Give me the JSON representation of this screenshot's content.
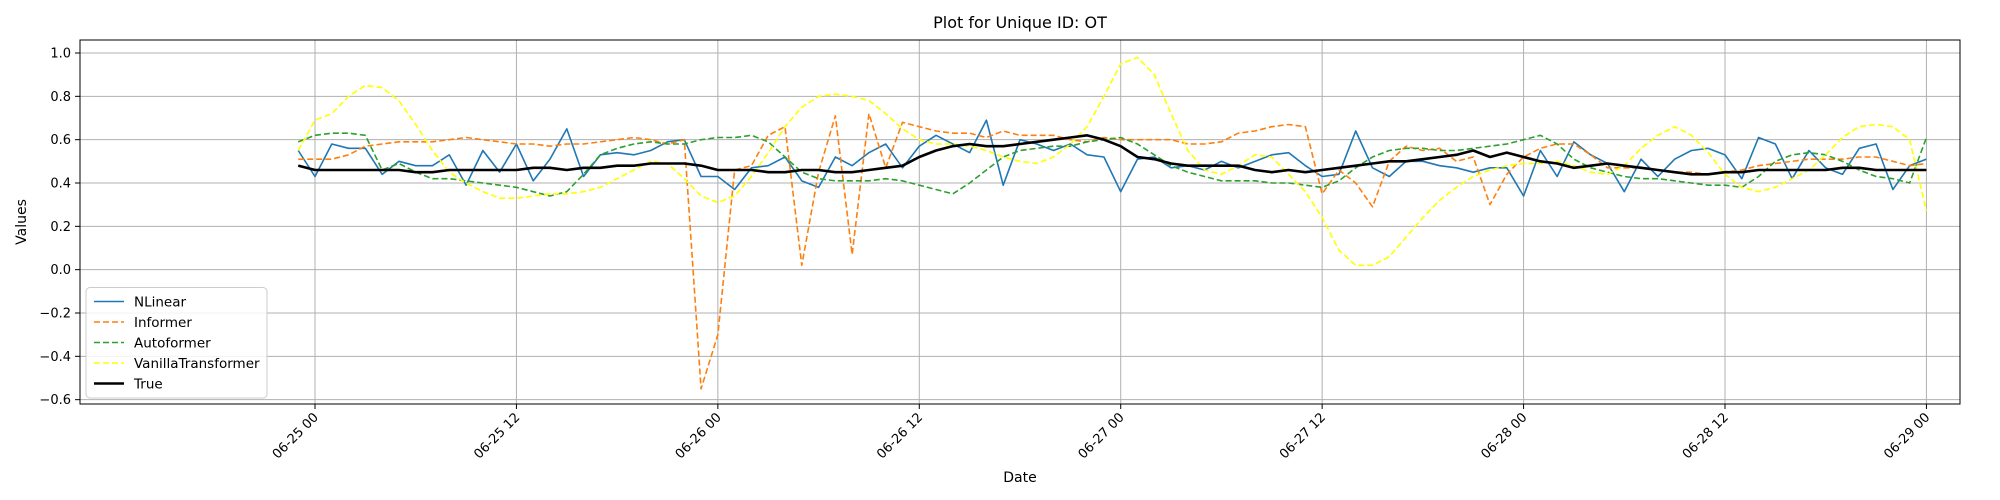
{
  "chart_data": {
    "type": "line",
    "title": "Plot for Unique ID: OT",
    "xlabel": "Date",
    "ylabel": "Values",
    "x_range": [
      "2025-06-24T10:00",
      "2025-06-29T02:00"
    ],
    "ylim": [
      -0.62,
      1.06
    ],
    "yticks": [
      -0.6,
      -0.4,
      -0.2,
      0.0,
      0.2,
      0.4,
      0.6,
      0.8,
      1.0
    ],
    "xticks": [
      {
        "t": "2025-06-25T00:00",
        "label": "06-25 00"
      },
      {
        "t": "2025-06-25T12:00",
        "label": "06-25 12"
      },
      {
        "t": "2025-06-26T00:00",
        "label": "06-26 00"
      },
      {
        "t": "2025-06-26T12:00",
        "label": "06-26 12"
      },
      {
        "t": "2025-06-27T00:00",
        "label": "06-27 00"
      },
      {
        "t": "2025-06-27T12:00",
        "label": "06-27 12"
      },
      {
        "t": "2025-06-28T00:00",
        "label": "06-28 00"
      },
      {
        "t": "2025-06-28T12:00",
        "label": "06-28 12"
      },
      {
        "t": "2025-06-29T00:00",
        "label": "06-29 00"
      }
    ],
    "grid": true,
    "legend_position": "lower-left",
    "x_start": "2025-06-24T23:00",
    "x_step_hours": 1,
    "series": [
      {
        "name": "NLinear",
        "color": "#1f77b4",
        "style": "solid",
        "values": [
          0.55,
          0.43,
          0.58,
          0.56,
          0.56,
          0.44,
          0.5,
          0.48,
          0.48,
          0.53,
          0.39,
          0.55,
          0.45,
          0.58,
          0.41,
          0.51,
          0.65,
          0.43,
          0.53,
          0.54,
          0.53,
          0.55,
          0.59,
          0.6,
          0.43,
          0.43,
          0.37,
          0.47,
          0.48,
          0.52,
          0.41,
          0.38,
          0.52,
          0.48,
          0.54,
          0.58,
          0.47,
          0.57,
          0.62,
          0.58,
          0.54,
          0.69,
          0.39,
          0.6,
          0.58,
          0.55,
          0.58,
          0.53,
          0.52,
          0.36,
          0.51,
          0.52,
          0.47,
          0.48,
          0.46,
          0.5,
          0.47,
          0.5,
          0.53,
          0.54,
          0.48,
          0.43,
          0.44,
          0.64,
          0.47,
          0.43,
          0.5,
          0.5,
          0.48,
          0.47,
          0.45,
          0.47,
          0.47,
          0.34,
          0.55,
          0.43,
          0.59,
          0.53,
          0.49,
          0.36,
          0.51,
          0.43,
          0.51,
          0.55,
          0.56,
          0.53,
          0.42,
          0.61,
          0.58,
          0.42,
          0.55,
          0.47,
          0.44,
          0.56,
          0.58,
          0.37,
          0.48,
          0.51
        ]
      },
      {
        "name": "Informer",
        "color": "#ff7f0e",
        "style": "dashed",
        "values": [
          0.51,
          0.51,
          0.51,
          0.53,
          0.57,
          0.58,
          0.59,
          0.59,
          0.59,
          0.6,
          0.61,
          0.6,
          0.59,
          0.58,
          0.58,
          0.57,
          0.58,
          0.58,
          0.59,
          0.6,
          0.61,
          0.6,
          0.58,
          0.6,
          -0.55,
          -0.3,
          0.46,
          0.48,
          0.62,
          0.66,
          0.02,
          0.45,
          0.71,
          0.07,
          0.72,
          0.47,
          0.68,
          0.66,
          0.64,
          0.63,
          0.63,
          0.61,
          0.64,
          0.62,
          0.62,
          0.62,
          0.6,
          0.59,
          0.61,
          0.6,
          0.6,
          0.6,
          0.6,
          0.58,
          0.58,
          0.59,
          0.63,
          0.64,
          0.66,
          0.67,
          0.66,
          0.35,
          0.46,
          0.4,
          0.29,
          0.5,
          0.57,
          0.55,
          0.56,
          0.5,
          0.52,
          0.3,
          0.44,
          0.52,
          0.56,
          0.58,
          0.58,
          0.53,
          0.47,
          0.47,
          0.47,
          0.46,
          0.45,
          0.45,
          0.44,
          0.45,
          0.46,
          0.48,
          0.49,
          0.5,
          0.51,
          0.51,
          0.51,
          0.52,
          0.52,
          0.5,
          0.48,
          0.49
        ]
      },
      {
        "name": "Autoformer",
        "color": "#2ca02c",
        "style": "dashed",
        "values": [
          0.59,
          0.62,
          0.63,
          0.63,
          0.62,
          0.46,
          0.49,
          0.45,
          0.42,
          0.42,
          0.41,
          0.4,
          0.39,
          0.38,
          0.36,
          0.34,
          0.36,
          0.44,
          0.53,
          0.56,
          0.58,
          0.59,
          0.58,
          0.58,
          0.6,
          0.61,
          0.61,
          0.62,
          0.59,
          0.52,
          0.45,
          0.42,
          0.41,
          0.41,
          0.41,
          0.42,
          0.41,
          0.39,
          0.37,
          0.35,
          0.4,
          0.46,
          0.52,
          0.55,
          0.56,
          0.57,
          0.57,
          0.59,
          0.6,
          0.61,
          0.58,
          0.53,
          0.48,
          0.45,
          0.43,
          0.41,
          0.41,
          0.41,
          0.4,
          0.4,
          0.39,
          0.38,
          0.41,
          0.47,
          0.52,
          0.55,
          0.56,
          0.56,
          0.55,
          0.55,
          0.56,
          0.57,
          0.58,
          0.6,
          0.62,
          0.58,
          0.51,
          0.47,
          0.45,
          0.43,
          0.42,
          0.42,
          0.41,
          0.4,
          0.39,
          0.39,
          0.38,
          0.43,
          0.5,
          0.53,
          0.54,
          0.53,
          0.5,
          0.46,
          0.43,
          0.42,
          0.4,
          0.61
        ]
      },
      {
        "name": "VanillaTransformer",
        "color": "#ffff00",
        "style": "dashed",
        "values": [
          0.55,
          0.69,
          0.72,
          0.8,
          0.85,
          0.84,
          0.78,
          0.67,
          0.55,
          0.45,
          0.4,
          0.36,
          0.33,
          0.33,
          0.34,
          0.35,
          0.35,
          0.36,
          0.38,
          0.42,
          0.46,
          0.5,
          0.49,
          0.42,
          0.34,
          0.31,
          0.34,
          0.43,
          0.54,
          0.66,
          0.75,
          0.8,
          0.81,
          0.8,
          0.78,
          0.72,
          0.65,
          0.6,
          0.58,
          0.58,
          0.57,
          0.55,
          0.52,
          0.5,
          0.49,
          0.52,
          0.58,
          0.66,
          0.8,
          0.95,
          0.98,
          0.9,
          0.72,
          0.55,
          0.46,
          0.44,
          0.48,
          0.53,
          0.52,
          0.44,
          0.36,
          0.24,
          0.09,
          0.02,
          0.02,
          0.06,
          0.15,
          0.24,
          0.32,
          0.38,
          0.43,
          0.46,
          0.48,
          0.49,
          0.49,
          0.5,
          0.48,
          0.45,
          0.44,
          0.48,
          0.56,
          0.62,
          0.66,
          0.62,
          0.54,
          0.44,
          0.38,
          0.36,
          0.38,
          0.42,
          0.46,
          0.53,
          0.61,
          0.66,
          0.67,
          0.66,
          0.6,
          0.27
        ]
      },
      {
        "name": "True",
        "color": "#000000",
        "style": "solid-bold",
        "values": [
          0.48,
          0.46,
          0.46,
          0.46,
          0.46,
          0.46,
          0.46,
          0.45,
          0.45,
          0.46,
          0.46,
          0.46,
          0.46,
          0.46,
          0.47,
          0.47,
          0.46,
          0.47,
          0.47,
          0.48,
          0.48,
          0.49,
          0.49,
          0.49,
          0.48,
          0.46,
          0.46,
          0.46,
          0.45,
          0.45,
          0.46,
          0.46,
          0.45,
          0.45,
          0.46,
          0.47,
          0.48,
          0.52,
          0.55,
          0.57,
          0.58,
          0.57,
          0.57,
          0.58,
          0.59,
          0.6,
          0.61,
          0.62,
          0.6,
          0.57,
          0.52,
          0.51,
          0.49,
          0.48,
          0.48,
          0.48,
          0.48,
          0.46,
          0.45,
          0.46,
          0.45,
          0.46,
          0.47,
          0.48,
          0.49,
          0.5,
          0.5,
          0.51,
          0.52,
          0.53,
          0.55,
          0.52,
          0.54,
          0.52,
          0.5,
          0.49,
          0.47,
          0.48,
          0.49,
          0.48,
          0.47,
          0.46,
          0.45,
          0.44,
          0.44,
          0.45,
          0.45,
          0.46,
          0.46,
          0.46,
          0.46,
          0.46,
          0.47,
          0.47,
          0.46,
          0.46,
          0.46,
          0.46
        ]
      }
    ]
  }
}
